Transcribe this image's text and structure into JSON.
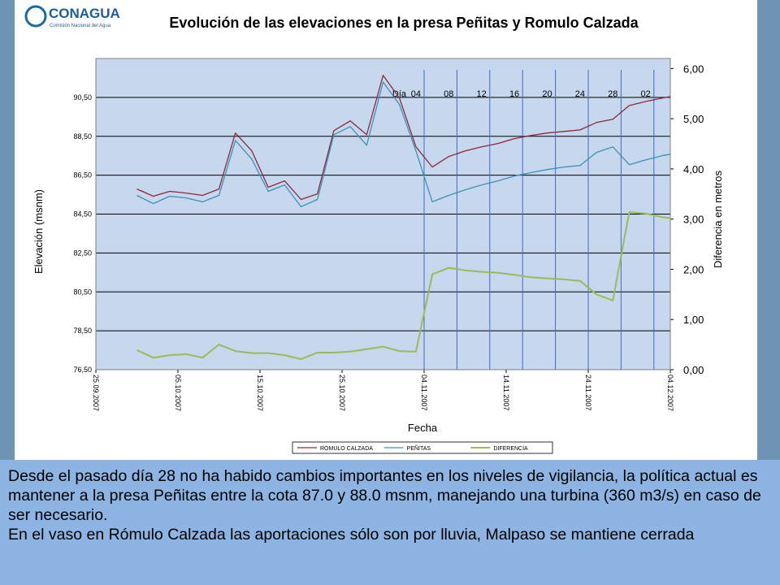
{
  "header": {
    "logo": "CONAGUA",
    "logo_subtitle": "Comisión Nacional del Agua"
  },
  "chart_data": {
    "type": "line",
    "title": "Evolución de las elevaciones en la presa Peñitas y Romulo Calzada",
    "x_label": "Fecha",
    "y_label": "Elevación  (msnm)",
    "y2_label": "Diferencia en metros",
    "x": [
      "2007-09-30",
      "2007-10-02",
      "2007-10-04",
      "2007-10-06",
      "2007-10-08",
      "2007-10-10",
      "2007-10-12",
      "2007-10-14",
      "2007-10-16",
      "2007-10-18",
      "2007-10-20",
      "2007-10-22",
      "2007-10-24",
      "2007-10-26",
      "2007-10-28",
      "2007-10-30",
      "2007-11-01",
      "2007-11-03",
      "2007-11-05",
      "2007-11-07",
      "2007-11-09",
      "2007-11-11",
      "2007-11-13",
      "2007-11-15",
      "2007-11-17",
      "2007-11-19",
      "2007-11-21",
      "2007-11-23",
      "2007-11-25",
      "2007-11-27",
      "2007-11-29",
      "2007-12-01",
      "2007-12-03",
      "2007-12-04"
    ],
    "series": [
      {
        "name": "ROMULO CALZADA",
        "color": "#8b2a3a",
        "values": [
          85.79,
          85.42,
          85.67,
          85.58,
          85.46,
          85.79,
          88.67,
          87.75,
          85.88,
          86.21,
          85.25,
          85.54,
          88.79,
          89.29,
          88.58,
          91.63,
          90.46,
          87.96,
          86.92,
          87.46,
          87.75,
          87.96,
          88.13,
          88.38,
          88.54,
          88.67,
          88.75,
          88.83,
          89.21,
          89.38,
          90.08,
          90.29,
          90.46,
          90.54
        ]
      },
      {
        "name": "PEÑITAS",
        "color": "#3f8fb8",
        "values": [
          85.46,
          85.04,
          85.42,
          85.33,
          85.13,
          85.46,
          88.29,
          87.33,
          85.67,
          86.0,
          84.88,
          85.25,
          88.58,
          89.0,
          88.04,
          91.29,
          90.13,
          87.75,
          85.13,
          85.46,
          85.75,
          86.0,
          86.21,
          86.46,
          86.63,
          86.79,
          86.92,
          87.0,
          87.67,
          87.96,
          87.04,
          87.29,
          87.5,
          87.58
        ]
      },
      {
        "name": "DIFERENCIA",
        "color": "#9bbb59",
        "axis": "y2",
        "values": [
          0.39,
          0.24,
          0.29,
          0.31,
          0.24,
          0.5,
          0.37,
          0.33,
          0.33,
          0.29,
          0.21,
          0.34,
          0.34,
          0.36,
          0.41,
          0.46,
          0.37,
          0.36,
          1.9,
          2.03,
          1.98,
          1.95,
          1.93,
          1.89,
          1.84,
          1.82,
          1.8,
          1.77,
          1.5,
          1.38,
          3.14,
          3.11,
          3.04,
          3.02
        ]
      }
    ],
    "xlim": [
      "2007-09-25",
      "2007-12-04"
    ],
    "xticks": [
      {
        "value": "2007-09-25",
        "label": "25.09.2007"
      },
      {
        "value": "2007-10-05",
        "label": "05.10.2007"
      },
      {
        "value": "2007-10-15",
        "label": "15.10.2007"
      },
      {
        "value": "2007-10-25",
        "label": "25.10.2007"
      },
      {
        "value": "2007-11-04",
        "label": "04.11.2007"
      },
      {
        "value": "2007-11-14",
        "label": "14.11.2007"
      },
      {
        "value": "2007-11-24",
        "label": "24.11.2007"
      },
      {
        "value": "2007-12-04",
        "label": "04.12.2007"
      }
    ],
    "ylim": [
      76.5,
      92.5
    ],
    "yticks": [
      {
        "value": 76.5,
        "label": "76,50"
      },
      {
        "value": 78.5,
        "label": "78,50"
      },
      {
        "value": 80.5,
        "label": "80,50"
      },
      {
        "value": 82.5,
        "label": "82,50"
      },
      {
        "value": 84.5,
        "label": "84,50"
      },
      {
        "value": 86.5,
        "label": "86,50"
      },
      {
        "value": 88.5,
        "label": "88,50"
      },
      {
        "value": 90.5,
        "label": "90,50"
      }
    ],
    "y2lim": [
      0,
      6.2
    ],
    "y2ticks": [
      {
        "value": 0,
        "label": "0,00"
      },
      {
        "value": 1,
        "label": "1,00"
      },
      {
        "value": 2,
        "label": "2,00"
      },
      {
        "value": 3,
        "label": "3,00"
      },
      {
        "value": 4,
        "label": "4,00"
      },
      {
        "value": 5,
        "label": "5,00"
      },
      {
        "value": 6,
        "label": "6,00"
      }
    ],
    "grid": true,
    "legend": "bottom",
    "marker_title": "Día",
    "markers": [
      {
        "x": "2007-11-04",
        "label": "04"
      },
      {
        "x": "2007-11-08",
        "label": "08"
      },
      {
        "x": "2007-11-12",
        "label": "12"
      },
      {
        "x": "2007-11-16",
        "label": "16"
      },
      {
        "x": "2007-11-20",
        "label": "20"
      },
      {
        "x": "2007-11-24",
        "label": "24"
      },
      {
        "x": "2007-11-28",
        "label": "28"
      },
      {
        "x": "2007-12-02",
        "label": "02"
      }
    ]
  },
  "text": {
    "paragraphs": [
      "Desde el pasado día 28 no ha habido cambios importantes en los niveles de vigilancia, la política actual es mantener a la presa Peñitas entre la cota 87.0 y 88.0 msnm, manejando una turbina (360 m3/s) en caso de ser necesario.",
      "En el vaso en Rómulo Calzada las aportaciones sólo son por lluvia, Malpaso se mantiene cerrada"
    ]
  }
}
